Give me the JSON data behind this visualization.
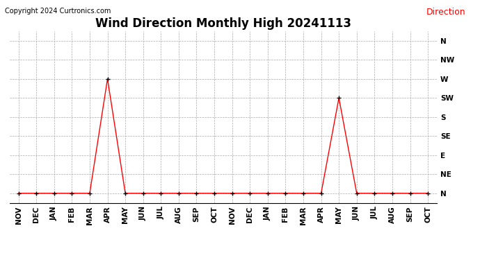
{
  "title": "Wind Direction Monthly High 20241113",
  "copyright": "Copyright 2024 Curtronics.com",
  "legend_label": "Direction",
  "legend_color": "#ff0000",
  "line_color": "#ff0000",
  "marker_color": "#000000",
  "background_color": "#ffffff",
  "grid_color": "#aaaaaa",
  "x_labels": [
    "NOV",
    "DEC",
    "JAN",
    "FEB",
    "MAR",
    "APR",
    "MAY",
    "JUN",
    "JUL",
    "AUG",
    "SEP",
    "OCT",
    "NOV",
    "DEC",
    "JAN",
    "FEB",
    "MAR",
    "APR",
    "MAY",
    "JUN",
    "JUL",
    "AUG",
    "SEP",
    "OCT"
  ],
  "y_labels": [
    "N",
    "NE",
    "E",
    "SE",
    "S",
    "SW",
    "W",
    "NW",
    "N"
  ],
  "y_values": [
    0,
    1,
    2,
    3,
    4,
    5,
    6,
    7,
    8
  ],
  "data_values": [
    0,
    0,
    0,
    0,
    0,
    6,
    0,
    0,
    0,
    0,
    0,
    0,
    0,
    0,
    0,
    0,
    0,
    0,
    5,
    0,
    0,
    0,
    0,
    0
  ],
  "title_fontsize": 12,
  "copyright_fontsize": 7,
  "axis_fontsize": 7.5,
  "legend_fontsize": 9
}
